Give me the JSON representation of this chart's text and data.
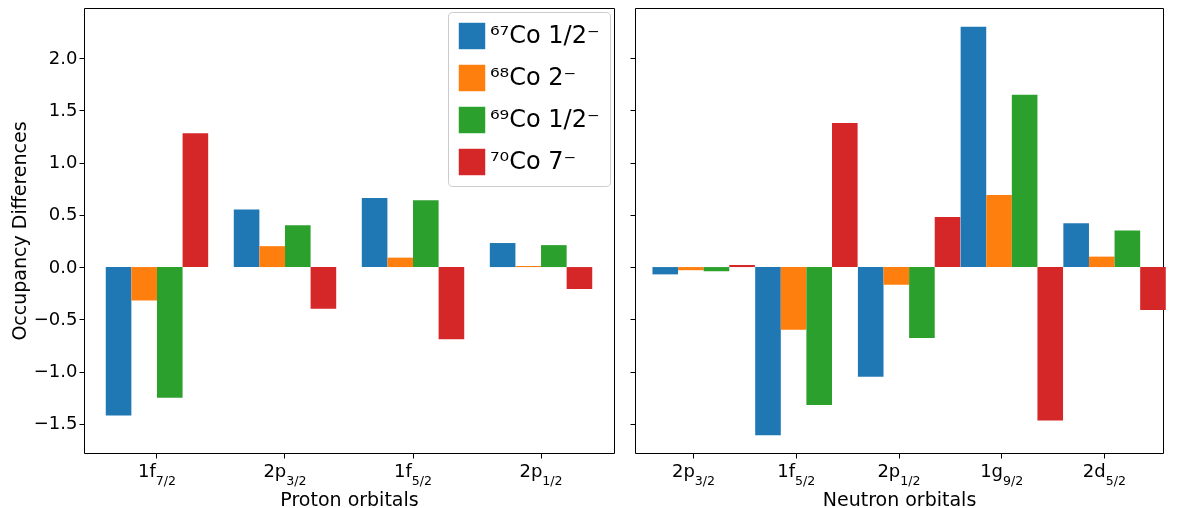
{
  "chart_data": [
    {
      "type": "bar",
      "xlabel": "Proton orbitals",
      "ylabel": "Occupancy Differences",
      "categories": [
        "1f$_{7/2}$",
        "2p$_{3/2}$",
        "1f$_{5/2}$",
        "2p$_{1/2}$"
      ],
      "series": [
        {
          "name": "⁶⁷Co 1/2⁻",
          "color": "#1f77b4",
          "values": [
            -1.42,
            0.55,
            0.66,
            0.23
          ]
        },
        {
          "name": "⁶⁸Co 2⁻",
          "color": "#ff7f0e",
          "values": [
            -0.32,
            0.2,
            0.09,
            0.01
          ]
        },
        {
          "name": "⁶⁹Co 1/2⁻",
          "color": "#2ca02c",
          "values": [
            -1.25,
            0.4,
            0.64,
            0.21
          ]
        },
        {
          "name": "⁷⁰Co 7⁻",
          "color": "#d62728",
          "values": [
            1.28,
            -0.4,
            -0.69,
            -0.21
          ]
        }
      ],
      "ylim": [
        -1.78,
        2.48
      ],
      "yticks": [
        {
          "value": -1.5,
          "label": "−1.5"
        },
        {
          "value": -1,
          "label": "−1.0"
        },
        {
          "value": -0.5,
          "label": "−0.5"
        },
        {
          "value": 0,
          "label": "0.0"
        },
        {
          "value": 0.5,
          "label": "0.5"
        },
        {
          "value": 1,
          "label": "1.0"
        },
        {
          "value": 1.5,
          "label": "1.5"
        },
        {
          "value": 2,
          "label": "2.0"
        }
      ],
      "legend": "top right"
    },
    {
      "type": "bar",
      "xlabel": "Neutron orbitals",
      "categories": [
        "2p$_{3/2}$",
        "1f$_{5/2}$",
        "2p$_{1/2}$",
        "1g$_{9/2}$",
        "2d$_{5/2}$"
      ],
      "series": [
        {
          "color": "#1f77b4",
          "values": [
            -0.07,
            -1.61,
            -1.05,
            2.3,
            0.42
          ]
        },
        {
          "color": "#ff7f0e",
          "values": [
            -0.03,
            -0.6,
            -0.17,
            0.69,
            0.1
          ]
        },
        {
          "color": "#2ca02c",
          "values": [
            -0.04,
            -1.32,
            -0.68,
            1.65,
            0.35
          ]
        },
        {
          "color": "#d62728",
          "values": [
            0.02,
            1.38,
            0.48,
            -1.47,
            -0.41
          ]
        }
      ],
      "ylim": [
        -1.78,
        2.48
      ],
      "yticks": [
        {
          "value": -1.5,
          "label": null
        },
        {
          "value": -1,
          "label": null
        },
        {
          "value": -0.5,
          "label": null
        },
        {
          "value": 0,
          "label": null
        },
        {
          "value": 0.5,
          "label": null
        },
        {
          "value": 1,
          "label": null
        },
        {
          "value": 1.5,
          "label": null
        },
        {
          "value": 2,
          "label": null
        }
      ],
      "tick_labels": "x"
    }
  ]
}
